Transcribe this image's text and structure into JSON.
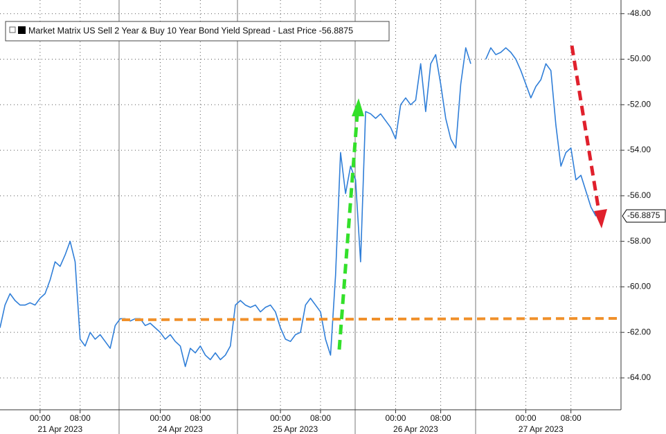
{
  "chart_data": {
    "type": "line",
    "categories": [
      null,
      null,
      null,
      null,
      null,
      null,
      null,
      null,
      "00:00",
      null,
      null,
      null,
      null,
      null,
      null,
      null,
      "08:00",
      null,
      null,
      null,
      null,
      null,
      null,
      null,
      null,
      null,
      null,
      null,
      null,
      null,
      null,
      null,
      "00:00",
      null,
      null,
      null,
      null,
      null,
      null,
      null,
      "08:00",
      null,
      null,
      null,
      null,
      null,
      null,
      null,
      null,
      null,
      null,
      null,
      null,
      null,
      null,
      null,
      "00:00",
      null,
      null,
      null,
      null,
      null,
      null,
      null,
      "08:00",
      null,
      null,
      null,
      null,
      null,
      null,
      null,
      null,
      null,
      null,
      null,
      null,
      null,
      null,
      "00:00",
      null,
      null,
      null,
      null,
      null,
      null,
      null,
      null,
      "08:00",
      null,
      null,
      null,
      null,
      null,
      null,
      null,
      null,
      null,
      null,
      null,
      null,
      null,
      null,
      null,
      null,
      "00:00",
      null,
      null,
      null,
      null,
      null,
      null,
      null,
      null,
      "08:00",
      null,
      null,
      null,
      null,
      null,
      null,
      null,
      null,
      null,
      null
    ],
    "date_categories": [
      null,
      null,
      null,
      null,
      null,
      null,
      null,
      null,
      null,
      null,
      null,
      null,
      "21 Apr 2023",
      null,
      null,
      null,
      null,
      null,
      null,
      null,
      null,
      null,
      null,
      null,
      null,
      null,
      null,
      null,
      null,
      null,
      null,
      null,
      null,
      null,
      null,
      null,
      "24 Apr 2023",
      null,
      null,
      null,
      null,
      null,
      null,
      null,
      null,
      null,
      null,
      null,
      null,
      null,
      null,
      null,
      null,
      null,
      null,
      null,
      null,
      null,
      null,
      "25 Apr 2023",
      null,
      null,
      null,
      null,
      null,
      null,
      null,
      null,
      null,
      null,
      null,
      null,
      null,
      null,
      null,
      null,
      null,
      null,
      null,
      null,
      null,
      null,
      null,
      "26 Apr 2023",
      null,
      null,
      null,
      null,
      null,
      null,
      null,
      null,
      null,
      null,
      null,
      null,
      null,
      null,
      null,
      null,
      null,
      null,
      null,
      null,
      null,
      null,
      null,
      null,
      "27 Apr 2023",
      null,
      null,
      null,
      null,
      null,
      null,
      null,
      null,
      null,
      null,
      null,
      null,
      null,
      null,
      null,
      null
    ],
    "series": [
      {
        "name": "Market Matrix US Sell 2 Year & Buy 10 Year Bond Yield Spread - Last Price -56.8875",
        "color": "#2f7ed8",
        "values": [
          -61.8,
          -60.8,
          -60.3,
          -60.6,
          -60.8,
          -60.8,
          -60.7,
          -60.8,
          -60.5,
          -60.3,
          -59.7,
          -58.9,
          -59.1,
          -58.6,
          -58.0,
          -58.9,
          -62.3,
          -62.6,
          -62.0,
          -62.3,
          -62.1,
          -62.4,
          -62.7,
          -61.7,
          -61.4,
          -61.4,
          -61.5,
          -61.4,
          -61.4,
          -61.7,
          -61.6,
          -61.8,
          -62.0,
          -62.3,
          -62.1,
          -62.4,
          -62.6,
          -63.5,
          -62.7,
          -62.9,
          -62.6,
          -63.0,
          -63.2,
          -62.9,
          -63.2,
          -63.0,
          -62.6,
          -60.8,
          -60.6,
          -60.8,
          -60.9,
          -60.8,
          -61.1,
          -60.9,
          -60.8,
          -61.1,
          -61.8,
          -62.3,
          -62.4,
          -62.1,
          -62.0,
          -60.8,
          -60.5,
          -60.8,
          -61.1,
          -62.3,
          -63.0,
          -59.5,
          -54.1,
          -55.9,
          -54.7,
          -55.3,
          -58.9,
          -52.3,
          -52.4,
          -52.6,
          -52.4,
          -52.7,
          -53.0,
          -53.5,
          -52.0,
          -51.7,
          -52.0,
          -51.8,
          -50.2,
          -52.3,
          -50.2,
          -49.8,
          -51.1,
          -52.6,
          -53.5,
          -53.9,
          -51.1,
          -49.5,
          -50.2,
          null,
          null,
          -50.0,
          -49.5,
          -49.8,
          -49.7,
          -49.5,
          -49.7,
          -50.0,
          -50.5,
          -51.1,
          -51.7,
          -51.2,
          -50.9,
          -50.2,
          -50.5,
          -52.9,
          -54.7,
          -54.1,
          -53.9,
          -55.3,
          -55.1,
          -55.8,
          -56.5,
          -56.9,
          null,
          null,
          null,
          null,
          null
        ]
      }
    ],
    "last_price": {
      "value": -56.8875,
      "label": "-56.8875"
    },
    "ylim": [
      -65.4,
      -47.4
    ],
    "yticks": [
      {
        "value": -48,
        "label": "-48.00"
      },
      {
        "value": -50,
        "label": "-50.00"
      },
      {
        "value": -52,
        "label": "-52.00"
      },
      {
        "value": -54,
        "label": "-54.00"
      },
      {
        "value": -56,
        "label": "-56.00"
      },
      {
        "value": -58,
        "label": "-58.00"
      },
      {
        "value": -60,
        "label": "-60.00"
      },
      {
        "value": -62,
        "label": "-62.00"
      },
      {
        "value": -64,
        "label": "-64.00"
      }
    ],
    "grid": true
  }
}
